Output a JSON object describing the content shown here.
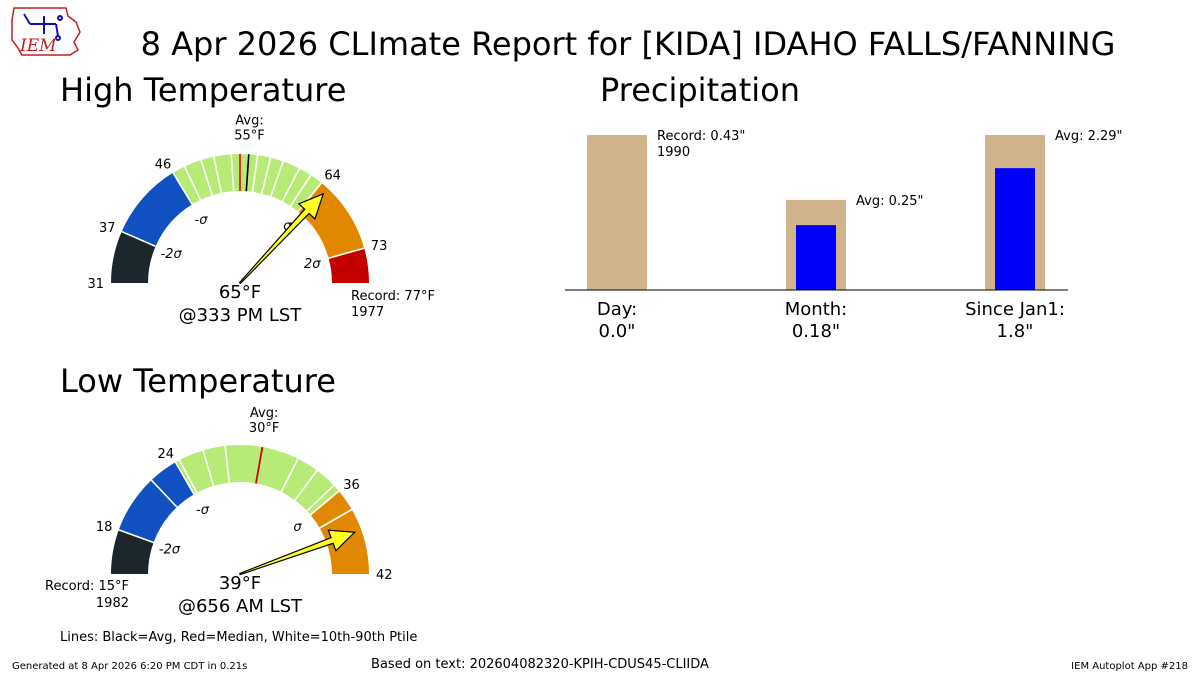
{
  "title": "8 Apr 2026 CLImate Report for [KIDA] IDAHO FALLS/FANNING",
  "logo_text": "IEM",
  "footer": {
    "left": "Generated at 8 Apr 2026 6:20 PM CDT in 0.21s",
    "center": "Based on text: 202604082320-KPIH-CDUS45-CLIIDA",
    "right": "IEM Autoplot App #218"
  },
  "colors": {
    "dark": "#1c262d",
    "blue": "#1050c0",
    "green": "#b8ea78",
    "orange": "#e28800",
    "red": "#c40000",
    "tan": "#d2b48c",
    "precip_bar": "#0000ff",
    "needle": "#ffff20"
  },
  "chart_data": [
    {
      "type": "gauge",
      "title": "High Temperature",
      "range": [
        31,
        77
      ],
      "bands": [
        {
          "from": 31,
          "to": 37,
          "color": "dark"
        },
        {
          "from": 37,
          "to": 46,
          "color": "blue"
        },
        {
          "from": 46,
          "to": 64,
          "color": "green"
        },
        {
          "from": 64,
          "to": 73,
          "color": "orange"
        },
        {
          "from": 73,
          "to": 77,
          "color": "red"
        }
      ],
      "ticks": [
        {
          "value": 31,
          "label": "31"
        },
        {
          "value": 37,
          "label": "37"
        },
        {
          "value": 46,
          "label": "46"
        },
        {
          "value": 64,
          "label": "64"
        },
        {
          "value": 73,
          "label": "73"
        }
      ],
      "sigma": [
        {
          "value": 37,
          "label": "-2σ"
        },
        {
          "value": 46,
          "label": "-σ"
        },
        {
          "value": 64,
          "label": "σ"
        },
        {
          "value": 73,
          "label": "2σ"
        }
      ],
      "percentile_lines": [
        47.5,
        49.5,
        51,
        53,
        54,
        56,
        57.5,
        59,
        61,
        62.5
      ],
      "avg": 55,
      "avg_label": "Avg:\n55°F",
      "median": 54,
      "observed": 65,
      "value_label": "65°F",
      "time_label": "@333 PM LST",
      "record_label": "Record: 77°F\n1977",
      "record_side": "right"
    },
    {
      "type": "gauge",
      "title": "Low Temperature",
      "range": [
        15,
        42
      ],
      "bands": [
        {
          "from": 15,
          "to": 18,
          "color": "dark"
        },
        {
          "from": 18,
          "to": 24,
          "color": "blue"
        },
        {
          "from": 24,
          "to": 36,
          "color": "green"
        },
        {
          "from": 36,
          "to": 42,
          "color": "orange"
        }
      ],
      "ticks": [
        {
          "value": 18,
          "label": "18"
        },
        {
          "value": 24,
          "label": "24"
        },
        {
          "value": 36,
          "label": "36"
        },
        {
          "value": 42,
          "label": "42"
        }
      ],
      "sigma": [
        {
          "value": 18,
          "label": "-2σ"
        },
        {
          "value": 24,
          "label": "-σ"
        },
        {
          "value": 36,
          "label": "σ"
        }
      ],
      "percentile_lines": [
        22,
        24.3,
        26,
        27.5,
        32.5,
        34,
        35.5,
        37.5
      ],
      "avg": 30,
      "avg_label": "Avg:\n30°F",
      "median": 30,
      "observed": 39,
      "value_label": "39°F",
      "time_label": "@656 AM LST",
      "record_label": "Record: 15°F\n1982",
      "record_side": "left"
    },
    {
      "type": "bar",
      "title": "Precipitation",
      "categories": [
        "Day:\n0.0\"",
        "Month:\n0.18\"",
        "Since Jan1:\n1.8\""
      ],
      "observed": [
        0.0,
        0.18,
        1.8
      ],
      "average": [
        0.25,
        0.25,
        2.29
      ],
      "annotations": [
        "Record: 0.43\"\n1990",
        "Avg: 0.25\"",
        "Avg: 2.29\""
      ]
    }
  ],
  "legend_note": "Lines: Black=Avg, Red=Median, White=10th-90th Ptile"
}
